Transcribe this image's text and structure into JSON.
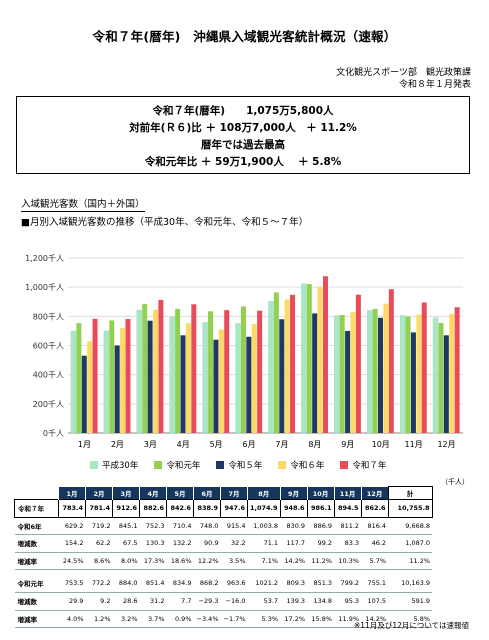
{
  "header": {
    "title": "令和７年(暦年)　沖縄県入域観光客統計概況（速報）",
    "dept": "文化観光スポーツ部　観光政策課",
    "date": "令和８年１月発表"
  },
  "summary": {
    "line1": "令和７年(暦年)　　1,075万5,800人",
    "line2": "対前年(Ｒ６)比 ＋ 108万7,000人　＋ 11.2%",
    "line3": "暦年では過去最高",
    "line4": "令和元年比 ＋ 59万1,900人　 ＋ 5.8%"
  },
  "section_title": "入域観光客数（国内＋外国）",
  "chart_subtitle": "■月別入域観光客数の推移（平成30年、令和元年、令和５～７年）",
  "chart_data": {
    "type": "bar",
    "categories": [
      "1月",
      "2月",
      "3月",
      "4月",
      "5月",
      "6月",
      "7月",
      "8月",
      "9月",
      "10月",
      "11月",
      "12月"
    ],
    "y_tick_labels": [
      "0千人",
      "200千人",
      "400千人",
      "600千人",
      "800千人",
      "1,000千人",
      "1,200千人"
    ],
    "ylim": [
      0,
      1200
    ],
    "grid": true,
    "legend_position": "bottom",
    "series": [
      {
        "name": "平成30年",
        "color": "#a9e7c2",
        "values": [
          700,
          700,
          843,
          795,
          758,
          751,
          903,
          1024,
          805,
          840,
          806,
          791
        ]
      },
      {
        "name": "令和元年",
        "color": "#92d050",
        "values": [
          753.5,
          772.2,
          884.0,
          851.4,
          834.9,
          868.2,
          963.6,
          1021.2,
          809.3,
          851.3,
          799.2,
          755.1
        ]
      },
      {
        "name": "令和５年",
        "color": "#1f3864",
        "values": [
          530,
          600,
          770,
          670,
          640,
          660,
          780,
          820,
          700,
          790,
          690,
          670
        ]
      },
      {
        "name": "令和６年",
        "color": "#ffd966",
        "values": [
          629.2,
          719.2,
          845.1,
          752.3,
          710.4,
          748.0,
          915.4,
          1003.8,
          830.9,
          886.9,
          811.2,
          816.4
        ]
      },
      {
        "name": "令和７年",
        "color": "#e84c5a",
        "values": [
          783.4,
          781.4,
          912.6,
          882.6,
          842.6,
          838.9,
          947.6,
          1074.9,
          948.6,
          986.1,
          894.5,
          862.6
        ]
      }
    ]
  },
  "table": {
    "unit": "（千人）",
    "header": [
      "",
      "1月",
      "2月",
      "3月",
      "4月",
      "5月",
      "6月",
      "7月",
      "8月",
      "9月",
      "10月",
      "11月",
      "12月",
      "計"
    ],
    "rows": [
      {
        "label": "令和７年",
        "cells": [
          "783.4",
          "781.4",
          "912.6",
          "882.6",
          "842.6",
          "838.9",
          "947.6",
          "1,074.9",
          "948.6",
          "986.1",
          "894.5",
          "862.6",
          "10,755.8"
        ]
      },
      {
        "label": "令和6年",
        "cells": [
          "629.2",
          "719.2",
          "845.1",
          "752.3",
          "710.4",
          "748.0",
          "915.4",
          "1,003.8",
          "830.9",
          "886.9",
          "811.2",
          "816.4",
          "9,668.8"
        ]
      },
      {
        "label": "増減数",
        "cells": [
          "154.2",
          "62.2",
          "67.5",
          "130.3",
          "132.2",
          "90.9",
          "32.2",
          "71.1",
          "117.7",
          "99.2",
          "83.3",
          "46.2",
          "1,087.0"
        ]
      },
      {
        "label": "増減率",
        "cells": [
          "24.5%",
          "8.6%",
          "8.0%",
          "17.3%",
          "18.6%",
          "12.2%",
          "3.5%",
          "7.1%",
          "14.2%",
          "11.2%",
          "10.3%",
          "5.7%",
          "11.2%"
        ]
      },
      {
        "label": "令和元年",
        "cells": [
          "753.5",
          "772.2",
          "884.0",
          "851.4",
          "834.9",
          "868.2",
          "963.6",
          "1021.2",
          "809.3",
          "851.3",
          "799.2",
          "755.1",
          "10,163.9"
        ]
      },
      {
        "label": "増減数",
        "cells": [
          "29.9",
          "9.2",
          "28.6",
          "31.2",
          "7.7",
          "−29.3",
          "−16.0",
          "53.7",
          "139.3",
          "134.8",
          "95.3",
          "107.5",
          "591.9"
        ]
      },
      {
        "label": "増減率",
        "cells": [
          "4.0%",
          "1.2%",
          "3.2%",
          "3.7%",
          "0.9%",
          "−3.4%",
          "−1.7%",
          "5.3%",
          "17.2%",
          "15.8%",
          "11.9%",
          "14.2%",
          "5.8%"
        ]
      }
    ]
  },
  "note": "※11月及び12月については速報値"
}
